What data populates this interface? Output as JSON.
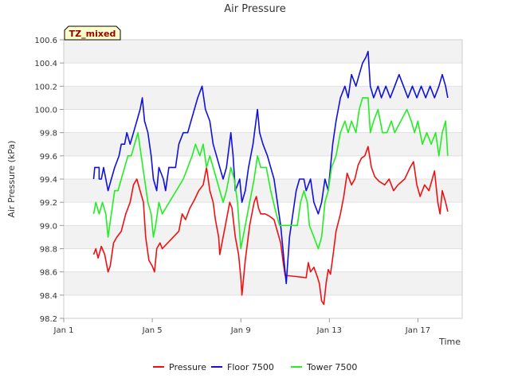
{
  "chart_data": {
    "type": "line",
    "title": "Air Pressure",
    "xlabel": "Time",
    "ylabel": "Air Pressure (kPa)",
    "ylim": [
      98.2,
      100.6
    ],
    "y_ticks": [
      "98.2",
      "98.4",
      "98.6",
      "98.8",
      "99.0",
      "99.2",
      "99.4",
      "99.6",
      "99.8",
      "100.0",
      "100.2",
      "100.4",
      "100.6"
    ],
    "xlim_day": [
      1,
      19.0
    ],
    "x_ticks": [
      {
        "label": "Jan 1",
        "day": 1
      },
      {
        "label": "Jan 5",
        "day": 5
      },
      {
        "label": "Jan 9",
        "day": 9
      },
      {
        "label": "Jan 13",
        "day": 13
      },
      {
        "label": "Jan 17",
        "day": 17
      }
    ],
    "grid": true,
    "legend_position": "bottom",
    "annotation": "TZ_mixed",
    "series": [
      {
        "name": "Pressure",
        "color": "#ee1111",
        "points": [
          [
            2.35,
            98.75
          ],
          [
            2.45,
            98.8
          ],
          [
            2.55,
            98.72
          ],
          [
            2.7,
            98.82
          ],
          [
            2.85,
            98.75
          ],
          [
            3.0,
            98.6
          ],
          [
            3.1,
            98.65
          ],
          [
            3.25,
            98.85
          ],
          [
            3.4,
            98.9
          ],
          [
            3.6,
            98.95
          ],
          [
            3.8,
            99.1
          ],
          [
            4.0,
            99.2
          ],
          [
            4.15,
            99.35
          ],
          [
            4.3,
            99.4
          ],
          [
            4.45,
            99.3
          ],
          [
            4.6,
            99.2
          ],
          [
            4.7,
            98.9
          ],
          [
            4.85,
            98.7
          ],
          [
            5.0,
            98.65
          ],
          [
            5.1,
            98.6
          ],
          [
            5.2,
            98.8
          ],
          [
            5.35,
            98.85
          ],
          [
            5.45,
            98.8
          ],
          [
            6.2,
            98.95
          ],
          [
            6.35,
            99.1
          ],
          [
            6.5,
            99.05
          ],
          [
            6.7,
            99.15
          ],
          [
            6.9,
            99.22
          ],
          [
            7.1,
            99.3
          ],
          [
            7.3,
            99.35
          ],
          [
            7.45,
            99.5
          ],
          [
            7.6,
            99.3
          ],
          [
            7.75,
            99.2
          ],
          [
            7.85,
            99.05
          ],
          [
            8.0,
            98.9
          ],
          [
            8.05,
            98.75
          ],
          [
            8.2,
            98.9
          ],
          [
            8.3,
            99.0
          ],
          [
            8.5,
            99.2
          ],
          [
            8.6,
            99.15
          ],
          [
            8.75,
            98.9
          ],
          [
            8.9,
            98.75
          ],
          [
            9.0,
            98.55
          ],
          [
            9.05,
            98.4
          ],
          [
            9.2,
            98.7
          ],
          [
            9.4,
            99.0
          ],
          [
            9.6,
            99.2
          ],
          [
            9.7,
            99.25
          ],
          [
            9.8,
            99.15
          ],
          [
            9.9,
            99.1
          ],
          [
            10.1,
            99.1
          ],
          [
            10.3,
            99.08
          ],
          [
            10.5,
            99.05
          ],
          [
            10.8,
            98.85
          ],
          [
            10.9,
            98.7
          ],
          [
            11.0,
            98.57
          ],
          [
            11.5,
            98.56
          ],
          [
            11.95,
            98.55
          ],
          [
            12.05,
            98.68
          ],
          [
            12.15,
            98.6
          ],
          [
            12.3,
            98.64
          ],
          [
            12.45,
            98.56
          ],
          [
            12.55,
            98.5
          ],
          [
            12.65,
            98.35
          ],
          [
            12.75,
            98.32
          ],
          [
            12.85,
            98.5
          ],
          [
            12.95,
            98.62
          ],
          [
            13.05,
            98.58
          ],
          [
            13.15,
            98.72
          ],
          [
            13.3,
            98.95
          ],
          [
            13.5,
            99.1
          ],
          [
            13.65,
            99.25
          ],
          [
            13.8,
            99.45
          ],
          [
            14.0,
            99.35
          ],
          [
            14.15,
            99.4
          ],
          [
            14.3,
            99.52
          ],
          [
            14.45,
            99.58
          ],
          [
            14.6,
            99.6
          ],
          [
            14.75,
            99.68
          ],
          [
            14.9,
            99.5
          ],
          [
            15.05,
            99.42
          ],
          [
            15.25,
            99.38
          ],
          [
            15.5,
            99.35
          ],
          [
            15.7,
            99.4
          ],
          [
            15.9,
            99.3
          ],
          [
            16.1,
            99.35
          ],
          [
            16.4,
            99.4
          ],
          [
            16.65,
            99.5
          ],
          [
            16.8,
            99.55
          ],
          [
            16.95,
            99.35
          ],
          [
            17.1,
            99.25
          ],
          [
            17.3,
            99.35
          ],
          [
            17.5,
            99.3
          ],
          [
            17.75,
            99.47
          ],
          [
            17.9,
            99.2
          ],
          [
            18.0,
            99.1
          ],
          [
            18.1,
            99.3
          ],
          [
            18.25,
            99.2
          ],
          [
            18.35,
            99.12
          ]
        ]
      },
      {
        "name": "Floor 7500",
        "color": "#1111dd",
        "points": [
          [
            2.35,
            99.4
          ],
          [
            2.4,
            99.5
          ],
          [
            2.6,
            99.5
          ],
          [
            2.6,
            99.4
          ],
          [
            2.7,
            99.4
          ],
          [
            2.8,
            99.5
          ],
          [
            2.9,
            99.4
          ],
          [
            3.0,
            99.3
          ],
          [
            3.15,
            99.4
          ],
          [
            3.3,
            99.5
          ],
          [
            3.5,
            99.6
          ],
          [
            3.6,
            99.7
          ],
          [
            3.75,
            99.7
          ],
          [
            3.85,
            99.8
          ],
          [
            4.0,
            99.7
          ],
          [
            4.15,
            99.8
          ],
          [
            4.3,
            99.9
          ],
          [
            4.45,
            100.0
          ],
          [
            4.55,
            100.1
          ],
          [
            4.65,
            99.9
          ],
          [
            4.8,
            99.8
          ],
          [
            4.95,
            99.6
          ],
          [
            5.05,
            99.4
          ],
          [
            5.2,
            99.3
          ],
          [
            5.3,
            99.5
          ],
          [
            5.5,
            99.4
          ],
          [
            5.6,
            99.3
          ],
          [
            5.75,
            99.5
          ],
          [
            6.05,
            99.5
          ],
          [
            6.2,
            99.7
          ],
          [
            6.4,
            99.8
          ],
          [
            6.6,
            99.8
          ],
          [
            6.75,
            99.9
          ],
          [
            6.9,
            100.0
          ],
          [
            7.05,
            100.1
          ],
          [
            7.25,
            100.2
          ],
          [
            7.4,
            100.0
          ],
          [
            7.6,
            99.9
          ],
          [
            7.75,
            99.7
          ],
          [
            7.9,
            99.6
          ],
          [
            8.05,
            99.5
          ],
          [
            8.2,
            99.4
          ],
          [
            8.35,
            99.5
          ],
          [
            8.55,
            99.8
          ],
          [
            8.65,
            99.6
          ],
          [
            8.75,
            99.3
          ],
          [
            8.95,
            99.4
          ],
          [
            9.05,
            99.2
          ],
          [
            9.2,
            99.3
          ],
          [
            9.35,
            99.5
          ],
          [
            9.45,
            99.6
          ],
          [
            9.55,
            99.7
          ],
          [
            9.75,
            100.0
          ],
          [
            9.85,
            99.8
          ],
          [
            10.0,
            99.7
          ],
          [
            10.2,
            99.6
          ],
          [
            10.35,
            99.5
          ],
          [
            10.5,
            99.4
          ],
          [
            10.65,
            99.2
          ],
          [
            10.8,
            99.0
          ],
          [
            10.95,
            98.7
          ],
          [
            11.05,
            98.5
          ],
          [
            11.2,
            98.9
          ],
          [
            11.35,
            99.1
          ],
          [
            11.5,
            99.3
          ],
          [
            11.65,
            99.4
          ],
          [
            11.85,
            99.4
          ],
          [
            11.95,
            99.3
          ],
          [
            12.15,
            99.4
          ],
          [
            12.3,
            99.2
          ],
          [
            12.5,
            99.1
          ],
          [
            12.65,
            99.2
          ],
          [
            12.8,
            99.4
          ],
          [
            12.95,
            99.3
          ],
          [
            13.15,
            99.7
          ],
          [
            13.3,
            99.9
          ],
          [
            13.5,
            100.1
          ],
          [
            13.7,
            100.2
          ],
          [
            13.85,
            100.1
          ],
          [
            14.0,
            100.3
          ],
          [
            14.2,
            100.2
          ],
          [
            14.35,
            100.3
          ],
          [
            14.5,
            100.4
          ],
          [
            14.65,
            100.45
          ],
          [
            14.75,
            100.5
          ],
          [
            14.85,
            100.2
          ],
          [
            15.0,
            100.1
          ],
          [
            15.2,
            100.2
          ],
          [
            15.35,
            100.1
          ],
          [
            15.55,
            100.2
          ],
          [
            15.75,
            100.1
          ],
          [
            15.95,
            100.2
          ],
          [
            16.15,
            100.3
          ],
          [
            16.35,
            100.2
          ],
          [
            16.55,
            100.1
          ],
          [
            16.75,
            100.2
          ],
          [
            16.95,
            100.1
          ],
          [
            17.15,
            100.2
          ],
          [
            17.35,
            100.1
          ],
          [
            17.55,
            100.2
          ],
          [
            17.75,
            100.1
          ],
          [
            17.95,
            100.2
          ],
          [
            18.1,
            100.3
          ],
          [
            18.25,
            100.2
          ],
          [
            18.35,
            100.1
          ]
        ]
      },
      {
        "name": "Tower 7500",
        "color": "#22ee22",
        "points": [
          [
            2.35,
            99.1
          ],
          [
            2.45,
            99.2
          ],
          [
            2.6,
            99.1
          ],
          [
            2.75,
            99.2
          ],
          [
            2.9,
            99.1
          ],
          [
            3.0,
            98.9
          ],
          [
            3.15,
            99.1
          ],
          [
            3.3,
            99.3
          ],
          [
            3.45,
            99.3
          ],
          [
            3.6,
            99.4
          ],
          [
            3.75,
            99.5
          ],
          [
            3.9,
            99.6
          ],
          [
            4.05,
            99.6
          ],
          [
            4.2,
            99.7
          ],
          [
            4.35,
            99.8
          ],
          [
            4.5,
            99.6
          ],
          [
            4.65,
            99.4
          ],
          [
            4.8,
            99.2
          ],
          [
            4.95,
            99.1
          ],
          [
            5.05,
            98.9
          ],
          [
            5.15,
            99.0
          ],
          [
            5.3,
            99.2
          ],
          [
            5.45,
            99.1
          ],
          [
            6.4,
            99.4
          ],
          [
            6.6,
            99.5
          ],
          [
            6.8,
            99.6
          ],
          [
            6.95,
            99.7
          ],
          [
            7.15,
            99.6
          ],
          [
            7.3,
            99.7
          ],
          [
            7.45,
            99.5
          ],
          [
            7.6,
            99.6
          ],
          [
            7.75,
            99.5
          ],
          [
            7.9,
            99.4
          ],
          [
            8.05,
            99.3
          ],
          [
            8.2,
            99.2
          ],
          [
            8.35,
            99.3
          ],
          [
            8.55,
            99.5
          ],
          [
            8.7,
            99.4
          ],
          [
            8.85,
            99.2
          ],
          [
            9.0,
            98.8
          ],
          [
            9.2,
            99.0
          ],
          [
            9.4,
            99.2
          ],
          [
            9.6,
            99.4
          ],
          [
            9.75,
            99.6
          ],
          [
            9.9,
            99.5
          ],
          [
            10.15,
            99.5
          ],
          [
            10.35,
            99.3
          ],
          [
            10.6,
            99.1
          ],
          [
            10.75,
            99.0
          ],
          [
            11.0,
            99.0
          ],
          [
            11.55,
            99.0
          ],
          [
            11.7,
            99.2
          ],
          [
            11.85,
            99.3
          ],
          [
            12.0,
            99.2
          ],
          [
            12.1,
            99.0
          ],
          [
            12.3,
            98.9
          ],
          [
            12.5,
            98.8
          ],
          [
            12.65,
            98.9
          ],
          [
            12.8,
            99.2
          ],
          [
            12.95,
            99.3
          ],
          [
            13.1,
            99.5
          ],
          [
            13.3,
            99.6
          ],
          [
            13.5,
            99.8
          ],
          [
            13.7,
            99.9
          ],
          [
            13.85,
            99.8
          ],
          [
            14.0,
            99.9
          ],
          [
            14.2,
            99.8
          ],
          [
            14.35,
            100.0
          ],
          [
            14.5,
            100.1
          ],
          [
            14.75,
            100.1
          ],
          [
            14.85,
            99.8
          ],
          [
            15.0,
            99.9
          ],
          [
            15.2,
            100.0
          ],
          [
            15.4,
            99.8
          ],
          [
            15.6,
            99.8
          ],
          [
            15.8,
            99.9
          ],
          [
            15.95,
            99.8
          ],
          [
            16.5,
            100.0
          ],
          [
            16.7,
            99.9
          ],
          [
            16.85,
            99.8
          ],
          [
            17.0,
            99.9
          ],
          [
            17.2,
            99.7
          ],
          [
            17.4,
            99.8
          ],
          [
            17.6,
            99.7
          ],
          [
            17.8,
            99.8
          ],
          [
            17.95,
            99.6
          ],
          [
            18.1,
            99.8
          ],
          [
            18.25,
            99.9
          ],
          [
            18.35,
            99.6
          ]
        ]
      }
    ]
  }
}
